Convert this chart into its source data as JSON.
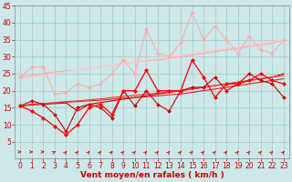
{
  "bg_color": "#cce8e8",
  "grid_color": "#aacccc",
  "xlabel": "Vent moyen/en rafales ( km/h )",
  "xlabel_color": "#cc0000",
  "xlim": [
    -0.5,
    23.5
  ],
  "ylim": [
    0,
    45
  ],
  "yticks": [
    5,
    10,
    15,
    20,
    25,
    30,
    35,
    40,
    45
  ],
  "xticks": [
    0,
    1,
    2,
    3,
    4,
    5,
    6,
    7,
    8,
    9,
    10,
    11,
    12,
    13,
    14,
    15,
    16,
    17,
    18,
    19,
    20,
    21,
    22,
    23
  ],
  "x": [
    0,
    1,
    2,
    3,
    4,
    5,
    6,
    7,
    8,
    9,
    10,
    11,
    12,
    13,
    14,
    15,
    16,
    17,
    18,
    19,
    20,
    21,
    22,
    23
  ],
  "lines": [
    {
      "y": [
        24,
        24.5,
        25,
        25.5,
        25.8,
        26,
        26.5,
        27,
        27.5,
        28,
        28.5,
        28.8,
        29,
        29.5,
        30,
        30.5,
        31,
        31.5,
        32,
        32.5,
        33,
        33.5,
        34,
        35
      ],
      "color": "#ffaaaa",
      "linewidth": 0.9,
      "marker": null,
      "markersize": 0,
      "zorder": 2
    },
    {
      "y": [
        24,
        27,
        27,
        19,
        19.5,
        22,
        21,
        22,
        25,
        29,
        25,
        38,
        31,
        30,
        34,
        43,
        35,
        39,
        35,
        31,
        36,
        32,
        31,
        35
      ],
      "color": "#ffaaaa",
      "linewidth": 0.8,
      "marker": "D",
      "markersize": 2.0,
      "zorder": 3
    },
    {
      "y": [
        23,
        24,
        24.5,
        25,
        25.5,
        26,
        26.5,
        27,
        27.5,
        28,
        28.5,
        29,
        29.5,
        30,
        30.5,
        31,
        31.5,
        32,
        32.5,
        33,
        33.5,
        34,
        34.5,
        35
      ],
      "color": "#ffcccc",
      "linewidth": 0.9,
      "marker": null,
      "markersize": 0,
      "zorder": 2
    },
    {
      "y": [
        15.5,
        17,
        16,
        13,
        8,
        15,
        16,
        15,
        12,
        20,
        15.5,
        20,
        16,
        14,
        20,
        21,
        21,
        24,
        20,
        22,
        25,
        23,
        22,
        18
      ],
      "color": "#cc0000",
      "linewidth": 0.8,
      "marker": "D",
      "markersize": 2.0,
      "zorder": 5
    },
    {
      "y": [
        15.5,
        16,
        16.2,
        16.4,
        16.6,
        16.8,
        17,
        17.2,
        17.5,
        17.8,
        18,
        18.2,
        18.5,
        18.8,
        19,
        19.5,
        20,
        20.5,
        21,
        21.5,
        22,
        22.5,
        23,
        23.5
      ],
      "color": "#dd2222",
      "linewidth": 0.8,
      "marker": null,
      "markersize": 0,
      "zorder": 3
    },
    {
      "y": [
        15.5,
        16,
        16.2,
        16.5,
        16.8,
        17,
        17.3,
        17.6,
        18,
        18.3,
        18.6,
        19,
        19.3,
        19.7,
        20,
        20.5,
        21,
        21.5,
        22,
        22.5,
        23,
        23.5,
        24,
        24.5
      ],
      "color": "#ff3333",
      "linewidth": 0.8,
      "marker": null,
      "markersize": 0,
      "zorder": 3
    },
    {
      "y": [
        15.5,
        14,
        12,
        9.5,
        7,
        10,
        15,
        16,
        13,
        20,
        20,
        26,
        20,
        20,
        20,
        29,
        24,
        18,
        22,
        22,
        23,
        25,
        23,
        22
      ],
      "color": "#ff0000",
      "linewidth": 0.9,
      "marker": "D",
      "markersize": 2.2,
      "zorder": 6
    },
    {
      "y": [
        15.5,
        15.8,
        16,
        16.2,
        16.4,
        14,
        16,
        16.5,
        17,
        17.5,
        18,
        18.5,
        19,
        19.5,
        20,
        20.5,
        21,
        21.5,
        22,
        22.5,
        23,
        23.5,
        24,
        25
      ],
      "color": "#cc0000",
      "linewidth": 0.8,
      "marker": null,
      "markersize": 0,
      "zorder": 2
    }
  ],
  "arrow_color": "#cc0000",
  "tick_color": "#cc0000",
  "tick_fontsize": 5.5,
  "xlabel_fontsize": 6.5
}
